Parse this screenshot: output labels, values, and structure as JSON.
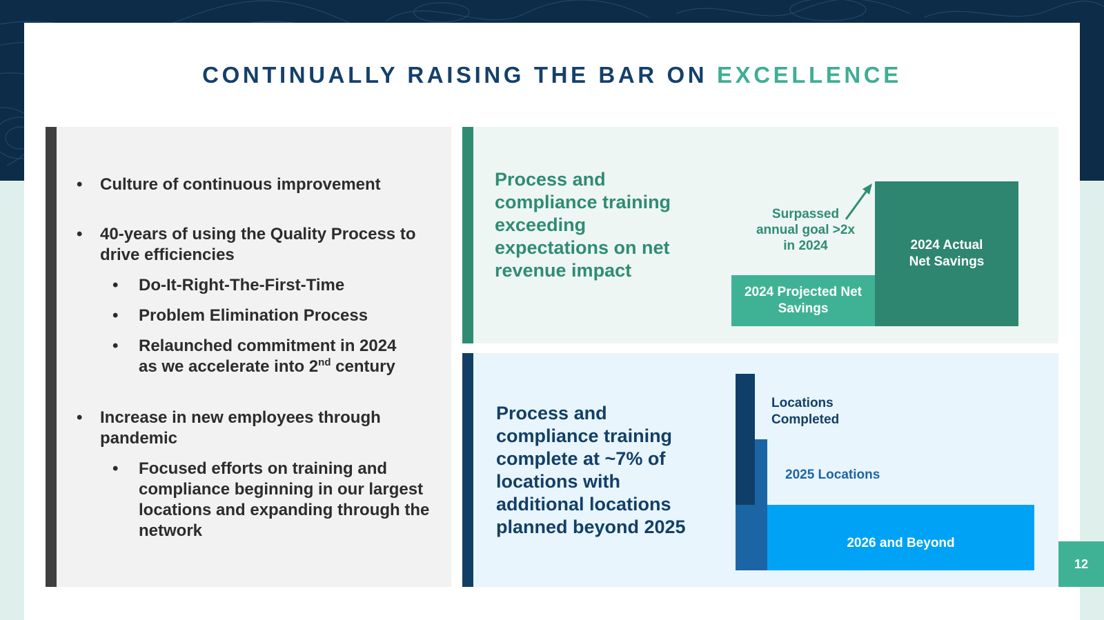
{
  "title": {
    "main": "CONTINUALLY RAISING THE BAR ON",
    "accent": "EXCELLENCE"
  },
  "left_panel": {
    "bullets": [
      "Culture of continuous improvement",
      "40-years of using the Quality Process to drive efficiencies",
      "Do-It-Right-The-First-Time",
      "Problem Elimination Process",
      "Relaunched commitment in 2024",
      "as we accelerate into 2",
      "nd",
      " century",
      "Increase in new employees through pandemic",
      "Focused efforts on training and compliance beginning in our largest locations and expanding through the network"
    ]
  },
  "top_right": {
    "text": "Process and compliance training exceeding expectations on net revenue impact",
    "surpassed": "Surpassed annual goal >2x in 2024",
    "projected_label": "2024 Projected Net Savings",
    "actual_label": "2024 Actual Net Savings"
  },
  "bottom_right": {
    "text": "Process and compliance training complete at ~7% of locations with additional locations planned beyond 2025",
    "completed_label": "Locations Completed",
    "locations_2025_label": "2025 Locations",
    "beyond_label": "2026 and Beyond"
  },
  "page_number": "12",
  "colors": {
    "navy": "#14406b",
    "teal": "#3fae93",
    "dark_teal": "#2e8570",
    "blue": "#1c65a4",
    "bright_blue": "#00a2f6"
  }
}
